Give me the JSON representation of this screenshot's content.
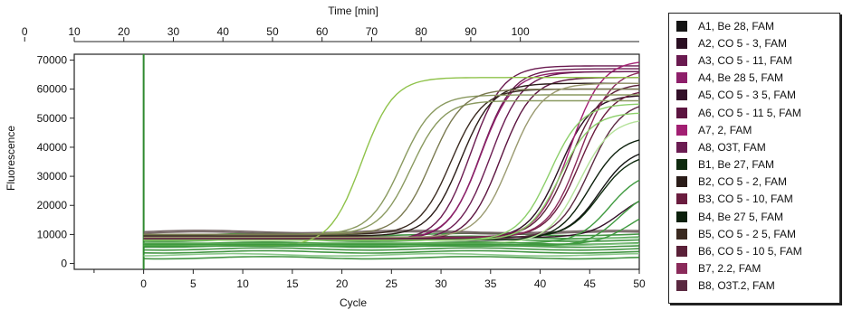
{
  "chart_data": {
    "type": "line",
    "title": "",
    "xlabel": "Cycle",
    "ylabel": "Fluorescence",
    "top_axis_label": "Time [min]",
    "xlim": [
      -7,
      50
    ],
    "ylim": [
      -2000,
      72000
    ],
    "x_ticks": [
      0,
      5,
      10,
      15,
      20,
      25,
      30,
      35,
      40,
      45,
      50
    ],
    "y_ticks": [
      0,
      10000,
      20000,
      30000,
      40000,
      50000,
      60000,
      70000
    ],
    "top_ticks": [
      0,
      10,
      20,
      30,
      40,
      50,
      60,
      70,
      80,
      90,
      100
    ],
    "top_axis_cycle_offset": -12,
    "top_axis_cycles_per_unit": 0.5,
    "grid": false,
    "legend_position": "right",
    "cycles": 50,
    "series": [
      {
        "name": "A1, Be 28, FAM",
        "color": "#141414",
        "curves": [
          {
            "baseline": 9000,
            "plateau": 40000,
            "midpoint": 46
          }
        ]
      },
      {
        "name": "A2, CO 5 - 3, FAM",
        "color": "#2a0f22",
        "curves": [
          {
            "baseline": 8500,
            "plateau": 58000,
            "midpoint": 42
          }
        ]
      },
      {
        "name": "A3, CO 5 - 11, FAM",
        "color": "#6a1a50",
        "curves": [
          {
            "baseline": 8000,
            "plateau": 68000,
            "midpoint": 33
          },
          {
            "baseline": 8200,
            "plateau": 67000,
            "midpoint": 34
          }
        ]
      },
      {
        "name": "A4, Be 28 5, FAM",
        "color": "#8e1f6a",
        "curves": [
          {
            "baseline": 8500,
            "plateau": 66000,
            "midpoint": 34
          }
        ]
      },
      {
        "name": "A5, CO 5 - 3 5, FAM",
        "color": "#331028",
        "curves": [
          {
            "baseline": 9000,
            "plateau": 25000,
            "midpoint": 48
          }
        ]
      },
      {
        "name": "A6, CO 5 - 11 5, FAM",
        "color": "#5c1440",
        "curves": [
          {
            "baseline": 8000,
            "plateau": 64000,
            "midpoint": 36
          }
        ]
      },
      {
        "name": "A7, 2, FAM",
        "color": "#a21f72",
        "curves": [
          {
            "baseline": 9000,
            "plateau": 70000,
            "midpoint": 43
          }
        ]
      },
      {
        "name": "A8, O3T, FAM",
        "color": "#6b1c52",
        "curves": [
          {
            "baseline": 8000,
            "plateau": 66000,
            "midpoint": 35
          }
        ]
      },
      {
        "name": "B1, Be 27, FAM",
        "color": "#0e2a0e",
        "curves": [
          {
            "baseline": 9000,
            "plateau": 38000,
            "midpoint": 46
          }
        ]
      },
      {
        "name": "B2, CO 5 - 2, FAM",
        "color": "#2a1c18",
        "curves": [
          {
            "baseline": 9500,
            "plateau": 62000,
            "midpoint": 32
          }
        ]
      },
      {
        "name": "B3, CO 5 - 10, FAM",
        "color": "#6a1c3e",
        "curves": [
          {
            "baseline": 9000,
            "plateau": 60000,
            "midpoint": 44
          }
        ]
      },
      {
        "name": "B4, Be 27 5, FAM",
        "color": "#0c200c",
        "curves": [
          {
            "baseline": 8000,
            "plateau": 44000,
            "midpoint": 45
          }
        ]
      },
      {
        "name": "B5, CO 5 - 2 5, FAM",
        "color": "#3a2a20",
        "curves": [
          {
            "baseline": 10000,
            "plateau": 60000,
            "midpoint": 31
          }
        ]
      },
      {
        "name": "B6, CO 5 - 10 5, FAM",
        "color": "#5a2038",
        "curves": [
          {
            "baseline": 9000,
            "plateau": 62000,
            "midpoint": 43
          }
        ]
      },
      {
        "name": "B7, 2.2, FAM",
        "color": "#8a2a5a",
        "curves": [
          {
            "baseline": 9000,
            "plateau": 67000,
            "midpoint": 44
          }
        ]
      },
      {
        "name": "B8, O3T.2, FAM",
        "color": "#5a2840",
        "curves": [
          {
            "baseline": 8500,
            "plateau": 56000,
            "midpoint": 45
          }
        ]
      },
      {
        "name": "",
        "color": "#8fc24a",
        "curves": [
          {
            "baseline": 6000,
            "plateau": 64000,
            "midpoint": 22
          }
        ]
      },
      {
        "name": "",
        "color": "#8a9a60",
        "curves": [
          {
            "baseline": 10000,
            "plateau": 58000,
            "midpoint": 26
          },
          {
            "baseline": 10000,
            "plateau": 56000,
            "midpoint": 27
          }
        ]
      },
      {
        "name": "",
        "color": "#7a7a50",
        "curves": [
          {
            "baseline": 10000,
            "plateau": 60000,
            "midpoint": 29
          }
        ]
      },
      {
        "name": "",
        "color": "#9a9a70",
        "curves": [
          {
            "baseline": 9000,
            "plateau": 62000,
            "midpoint": 37
          }
        ]
      },
      {
        "name": "",
        "color": "#8ccf6a",
        "curves": [
          {
            "baseline": 8000,
            "plateau": 55000,
            "midpoint": 41
          },
          {
            "baseline": 8000,
            "plateau": 52000,
            "midpoint": 42
          }
        ]
      },
      {
        "name": "",
        "color": "#b5e29a",
        "curves": [
          {
            "baseline": 7000,
            "plateau": 50000,
            "midpoint": 44
          }
        ]
      },
      {
        "name": "",
        "color": "#3f9a3f",
        "curves": [
          {
            "baseline": 7000,
            "plateau": 32000,
            "midpoint": 47
          },
          {
            "baseline": 6000,
            "plateau": 26000,
            "midpoint": 48
          },
          {
            "baseline": 6500,
            "plateau": 20000,
            "midpoint": 49
          }
        ]
      },
      {
        "name": "",
        "color": "#2f8a2f",
        "flat": [
          2000,
          4000,
          5000,
          6000,
          7000,
          8000,
          9000,
          10000
        ]
      },
      {
        "name": "",
        "color": "#7fc27f",
        "flat": [
          3000,
          6500,
          8500
        ]
      },
      {
        "name": "",
        "color": "#6a5a5a",
        "flat": [
          11000,
          10500
        ]
      }
    ]
  }
}
